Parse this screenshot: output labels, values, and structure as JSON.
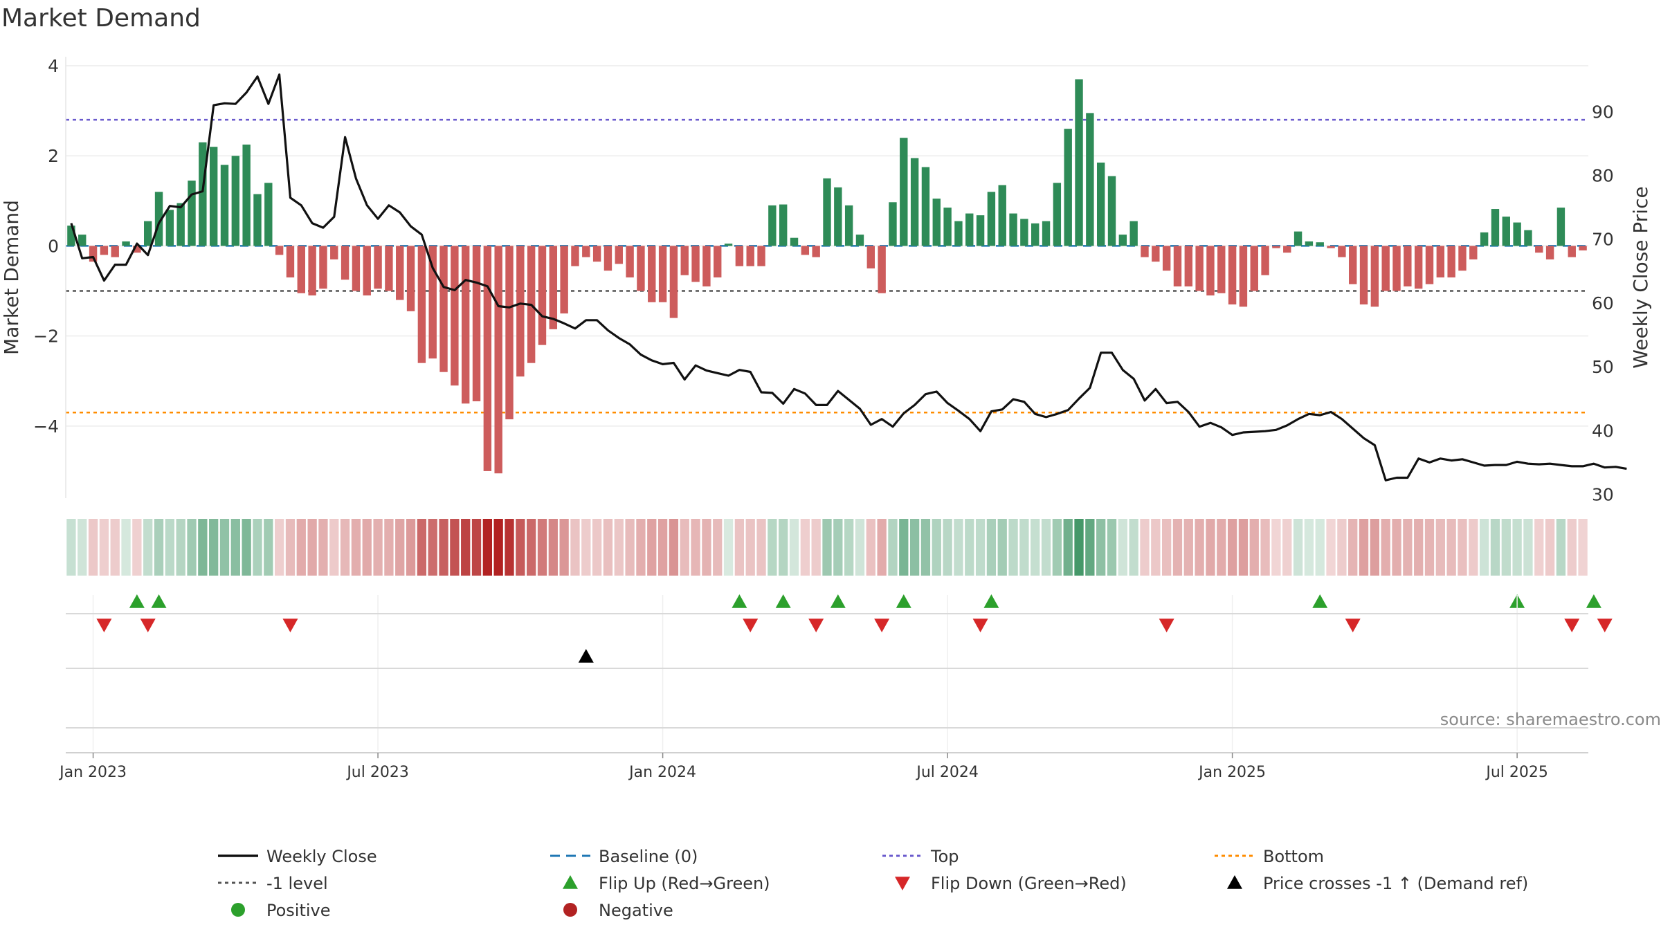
{
  "chart_data": {
    "type": "bar",
    "title": "Market Demand",
    "ylabel": "Market Demand",
    "y2label": "Weekly Close Price",
    "ylim": [
      -5.6,
      4.2
    ],
    "yticks": [
      4,
      2,
      0,
      -2,
      -4
    ],
    "ytick_labels": [
      "4",
      "2",
      "0",
      "−2",
      "−4"
    ],
    "y2lim": [
      29.4,
      98.6
    ],
    "y2ticks": [
      90,
      80,
      70,
      60,
      50,
      40,
      30
    ],
    "y2tick_labels": [
      "90",
      "80",
      "70",
      "60",
      "50",
      "40",
      "30"
    ],
    "x_ticks": [
      {
        "week": 2,
        "label": "Jan 2023"
      },
      {
        "week": 28,
        "label": "Jul 2023"
      },
      {
        "week": 54,
        "label": "Jan 2024"
      },
      {
        "week": 80,
        "label": "Jul 2024"
      },
      {
        "week": 106,
        "label": "Jan 2025"
      },
      {
        "week": 132,
        "label": "Jul 2025"
      }
    ],
    "reference_lines": {
      "top": 2.8,
      "bottom": -3.7,
      "minus_one": -1,
      "baseline": 0
    },
    "demand": [
      0.45,
      0.25,
      -0.35,
      -0.2,
      -0.25,
      0.1,
      -0.15,
      0.55,
      1.2,
      0.8,
      0.95,
      1.45,
      2.3,
      2.2,
      1.8,
      2.0,
      2.25,
      1.15,
      1.4,
      -0.2,
      -0.7,
      -1.05,
      -1.1,
      -0.95,
      -0.3,
      -0.75,
      -1.0,
      -1.1,
      -0.95,
      -1.0,
      -1.2,
      -1.45,
      -2.6,
      -2.5,
      -2.8,
      -3.1,
      -3.5,
      -3.45,
      -5.0,
      -5.05,
      -3.85,
      -2.9,
      -2.6,
      -2.2,
      -1.85,
      -1.5,
      -0.45,
      -0.25,
      -0.35,
      -0.55,
      -0.4,
      -0.7,
      -1.0,
      -1.25,
      -1.25,
      -1.6,
      -0.65,
      -0.8,
      -0.9,
      -0.7,
      0.05,
      -0.45,
      -0.45,
      -0.45,
      0.9,
      0.92,
      0.18,
      -0.2,
      -0.25,
      1.5,
      1.3,
      0.9,
      0.25,
      -0.5,
      -1.05,
      0.97,
      2.4,
      1.95,
      1.75,
      1.05,
      0.85,
      0.55,
      0.72,
      0.68,
      1.2,
      1.35,
      0.72,
      0.6,
      0.5,
      0.55,
      1.4,
      2.6,
      3.7,
      2.95,
      1.85,
      1.55,
      0.25,
      0.55,
      -0.25,
      -0.35,
      -0.55,
      -0.9,
      -0.9,
      -1.0,
      -1.1,
      -1.05,
      -1.3,
      -1.35,
      -1.0,
      -0.65,
      -0.05,
      -0.15,
      0.32,
      0.1,
      0.08,
      -0.05,
      -0.25,
      -0.85,
      -1.3,
      -1.35,
      -1.0,
      -1.0,
      -0.9,
      -0.95,
      -0.85,
      -0.7,
      -0.7,
      -0.55,
      -0.3,
      0.3,
      0.82,
      0.65,
      0.52,
      0.35,
      -0.15,
      -0.3,
      0.85,
      -0.25,
      -0.1
    ],
    "weekly_close": [
      72.5,
      67,
      67.2,
      63.5,
      66,
      66,
      69.3,
      67.5,
      72.5,
      75.2,
      75,
      77,
      77.5,
      91,
      91.3,
      91.2,
      93,
      95.5,
      91.2,
      95.8,
      76.5,
      75.3,
      72.5,
      71.8,
      73.5,
      86,
      79.5,
      75.3,
      73.2,
      75.3,
      74.2,
      72,
      70.7,
      65.5,
      62.5,
      62,
      63.6,
      63.2,
      62.6,
      59.5,
      59.3,
      59.9,
      59.7,
      57.9,
      57.5,
      56.8,
      56,
      57.3,
      57.3,
      55.7,
      54.5,
      53.5,
      51.9,
      51,
      50.4,
      50.6,
      48,
      50.2,
      49.4,
      49,
      48.6,
      49.5,
      49.2,
      46,
      45.9,
      44.2,
      46.5,
      45.8,
      44,
      44,
      46.2,
      44.8,
      43.4,
      40.9,
      41.8,
      40.6,
      42.7,
      44,
      45.7,
      46.1,
      44.3,
      43.1,
      41.8,
      39.9,
      43,
      43.3,
      44.9,
      44.5,
      42.6,
      42.1,
      42.6,
      43.2,
      45,
      46.7,
      52.2,
      52.2,
      49.5,
      48.1,
      44.7,
      46.5,
      44.3,
      44.5,
      42.9,
      40.6,
      41.2,
      40.5,
      39.3,
      39.7,
      39.8,
      39.9,
      40.1,
      40.8,
      41.8,
      42.6,
      42.4,
      42.9,
      41.8,
      40.3,
      38.8,
      37.7,
      32.2,
      32.6,
      32.6,
      35.6,
      35,
      35.6,
      35.3,
      35.5,
      35,
      34.5,
      34.6,
      34.6,
      35.1,
      34.8,
      34.7,
      34.8,
      34.6,
      34.4,
      34.4,
      34.8,
      34.2,
      34.3,
      34.0
    ],
    "flip_up_weeks": [
      6,
      8,
      61,
      65,
      70,
      76,
      84,
      114,
      132,
      139
    ],
    "flip_down_weeks": [
      3,
      7,
      20,
      62,
      68,
      74,
      83,
      100,
      117,
      137,
      140
    ],
    "price_cross_weeks": [
      47
    ],
    "legend": [
      {
        "label": "Weekly Close",
        "symbol": "line",
        "color": "#111111"
      },
      {
        "label": "Baseline (0)",
        "symbol": "dash",
        "color": "#1f77b4"
      },
      {
        "label": "Top",
        "symbol": "dot",
        "color": "#6a5acd"
      },
      {
        "label": "Bottom",
        "symbol": "dot",
        "color": "#ff8c00"
      },
      {
        "label": "-1 level",
        "symbol": "dot",
        "color": "#555555"
      },
      {
        "label": "Flip Up (Red→Green)",
        "symbol": "triangle-up",
        "color": "#2ca02c"
      },
      {
        "label": "Flip Down (Green→Red)",
        "symbol": "triangle-down",
        "color": "#d62728"
      },
      {
        "label": "Price crosses -1 ↑ (Demand ref)",
        "symbol": "triangle-up",
        "color": "#000000"
      },
      {
        "label": "Positive",
        "symbol": "circle",
        "color": "#2ca02c"
      },
      {
        "label": "Negative",
        "symbol": "circle",
        "color": "#b22222"
      }
    ],
    "source": "source: sharemaestro.com",
    "colors": {
      "positive_bar": "#2e8b57",
      "negative_bar": "#cd5c5c",
      "price_line": "#111111",
      "baseline": "#1f77b4",
      "top_line": "#6a5acd",
      "bottom_line": "#ff8c00",
      "minus_one_line": "#555555",
      "flip_up": "#2ca02c",
      "flip_down": "#d62728",
      "price_cross": "#000000",
      "heat_positive": "#2e8b57",
      "heat_negative": "#b22222"
    }
  }
}
